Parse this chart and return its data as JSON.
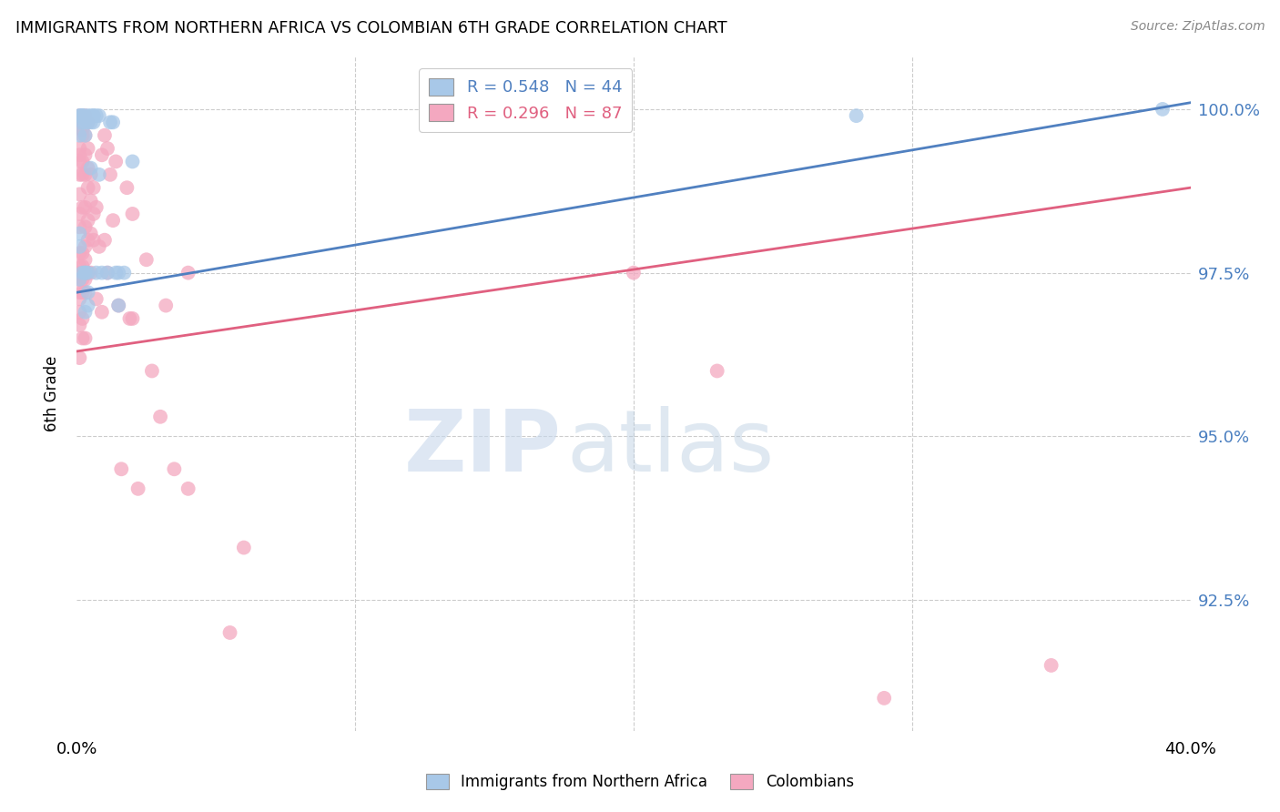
{
  "title": "IMMIGRANTS FROM NORTHERN AFRICA VS COLOMBIAN 6TH GRADE CORRELATION CHART",
  "source": "Source: ZipAtlas.com",
  "ylabel": "6th Grade",
  "ytick_labels": [
    "92.5%",
    "95.0%",
    "97.5%",
    "100.0%"
  ],
  "ytick_values": [
    0.925,
    0.95,
    0.975,
    1.0
  ],
  "xlim": [
    0.0,
    0.4
  ],
  "ylim": [
    0.905,
    1.008
  ],
  "legend_blue_label": "R = 0.548   N = 44",
  "legend_pink_label": "R = 0.296   N = 87",
  "blue_color": "#a8c8e8",
  "pink_color": "#f4a8c0",
  "blue_line_color": "#5080c0",
  "pink_line_color": "#e06080",
  "watermark_zip": "ZIP",
  "watermark_atlas": "atlas",
  "blue_line": [
    [
      0.0,
      0.972
    ],
    [
      0.4,
      1.001
    ]
  ],
  "pink_line": [
    [
      0.0,
      0.963
    ],
    [
      0.4,
      0.988
    ]
  ],
  "blue_scatter": [
    [
      0.001,
      0.999
    ],
    [
      0.001,
      0.999
    ],
    [
      0.002,
      0.999
    ],
    [
      0.002,
      0.999
    ],
    [
      0.002,
      0.999
    ],
    [
      0.003,
      0.999
    ],
    [
      0.004,
      0.999
    ],
    [
      0.005,
      0.999
    ],
    [
      0.006,
      0.999
    ],
    [
      0.006,
      0.999
    ],
    [
      0.007,
      0.999
    ],
    [
      0.008,
      0.999
    ],
    [
      0.001,
      0.998
    ],
    [
      0.002,
      0.998
    ],
    [
      0.003,
      0.998
    ],
    [
      0.004,
      0.998
    ],
    [
      0.005,
      0.998
    ],
    [
      0.012,
      0.998
    ],
    [
      0.013,
      0.998
    ],
    [
      0.006,
      0.998
    ],
    [
      0.001,
      0.996
    ],
    [
      0.003,
      0.996
    ],
    [
      0.001,
      0.981
    ],
    [
      0.001,
      0.979
    ],
    [
      0.002,
      0.975
    ],
    [
      0.003,
      0.975
    ],
    [
      0.003,
      0.975
    ],
    [
      0.004,
      0.975
    ],
    [
      0.007,
      0.975
    ],
    [
      0.009,
      0.975
    ],
    [
      0.011,
      0.975
    ],
    [
      0.014,
      0.975
    ],
    [
      0.015,
      0.975
    ],
    [
      0.017,
      0.975
    ],
    [
      0.001,
      0.974
    ],
    [
      0.004,
      0.972
    ],
    [
      0.003,
      0.969
    ],
    [
      0.004,
      0.97
    ],
    [
      0.015,
      0.97
    ],
    [
      0.008,
      0.99
    ],
    [
      0.005,
      0.991
    ],
    [
      0.02,
      0.992
    ],
    [
      0.28,
      0.999
    ],
    [
      0.39,
      1.0
    ]
  ],
  "pink_scatter": [
    [
      0.001,
      0.999
    ],
    [
      0.002,
      0.999
    ],
    [
      0.003,
      0.999
    ],
    [
      0.001,
      0.998
    ],
    [
      0.002,
      0.998
    ],
    [
      0.004,
      0.998
    ],
    [
      0.001,
      0.997
    ],
    [
      0.002,
      0.997
    ],
    [
      0.002,
      0.996
    ],
    [
      0.003,
      0.996
    ],
    [
      0.004,
      0.994
    ],
    [
      0.001,
      0.994
    ],
    [
      0.001,
      0.993
    ],
    [
      0.001,
      0.992
    ],
    [
      0.002,
      0.992
    ],
    [
      0.003,
      0.993
    ],
    [
      0.001,
      0.99
    ],
    [
      0.002,
      0.99
    ],
    [
      0.003,
      0.99
    ],
    [
      0.001,
      0.987
    ],
    [
      0.002,
      0.985
    ],
    [
      0.003,
      0.985
    ],
    [
      0.004,
      0.988
    ],
    [
      0.004,
      0.983
    ],
    [
      0.005,
      0.99
    ],
    [
      0.005,
      0.986
    ],
    [
      0.006,
      0.988
    ],
    [
      0.006,
      0.984
    ],
    [
      0.007,
      0.985
    ],
    [
      0.008,
      0.979
    ],
    [
      0.001,
      0.984
    ],
    [
      0.001,
      0.982
    ],
    [
      0.001,
      0.978
    ],
    [
      0.002,
      0.978
    ],
    [
      0.003,
      0.979
    ],
    [
      0.004,
      0.98
    ],
    [
      0.005,
      0.981
    ],
    [
      0.006,
      0.98
    ],
    [
      0.007,
      0.971
    ],
    [
      0.001,
      0.976
    ],
    [
      0.002,
      0.976
    ],
    [
      0.003,
      0.977
    ],
    [
      0.001,
      0.975
    ],
    [
      0.002,
      0.974
    ],
    [
      0.003,
      0.974
    ],
    [
      0.004,
      0.975
    ],
    [
      0.005,
      0.975
    ],
    [
      0.001,
      0.974
    ],
    [
      0.002,
      0.972
    ],
    [
      0.003,
      0.972
    ],
    [
      0.001,
      0.972
    ],
    [
      0.002,
      0.968
    ],
    [
      0.001,
      0.971
    ],
    [
      0.001,
      0.969
    ],
    [
      0.003,
      0.982
    ],
    [
      0.004,
      0.991
    ],
    [
      0.009,
      0.993
    ],
    [
      0.009,
      0.969
    ],
    [
      0.01,
      0.996
    ],
    [
      0.01,
      0.98
    ],
    [
      0.011,
      0.994
    ],
    [
      0.011,
      0.975
    ],
    [
      0.012,
      0.99
    ],
    [
      0.013,
      0.983
    ],
    [
      0.014,
      0.992
    ],
    [
      0.015,
      0.97
    ],
    [
      0.016,
      0.945
    ],
    [
      0.018,
      0.988
    ],
    [
      0.019,
      0.968
    ],
    [
      0.02,
      0.984
    ],
    [
      0.02,
      0.968
    ],
    [
      0.022,
      0.942
    ],
    [
      0.025,
      0.977
    ],
    [
      0.001,
      0.967
    ],
    [
      0.001,
      0.962
    ],
    [
      0.002,
      0.965
    ],
    [
      0.003,
      0.965
    ],
    [
      0.027,
      0.96
    ],
    [
      0.03,
      0.953
    ],
    [
      0.032,
      0.97
    ],
    [
      0.035,
      0.945
    ],
    [
      0.04,
      0.975
    ],
    [
      0.055,
      0.92
    ],
    [
      0.04,
      0.942
    ],
    [
      0.06,
      0.933
    ],
    [
      0.2,
      0.975
    ],
    [
      0.23,
      0.96
    ],
    [
      0.29,
      0.91
    ],
    [
      0.35,
      0.915
    ]
  ]
}
